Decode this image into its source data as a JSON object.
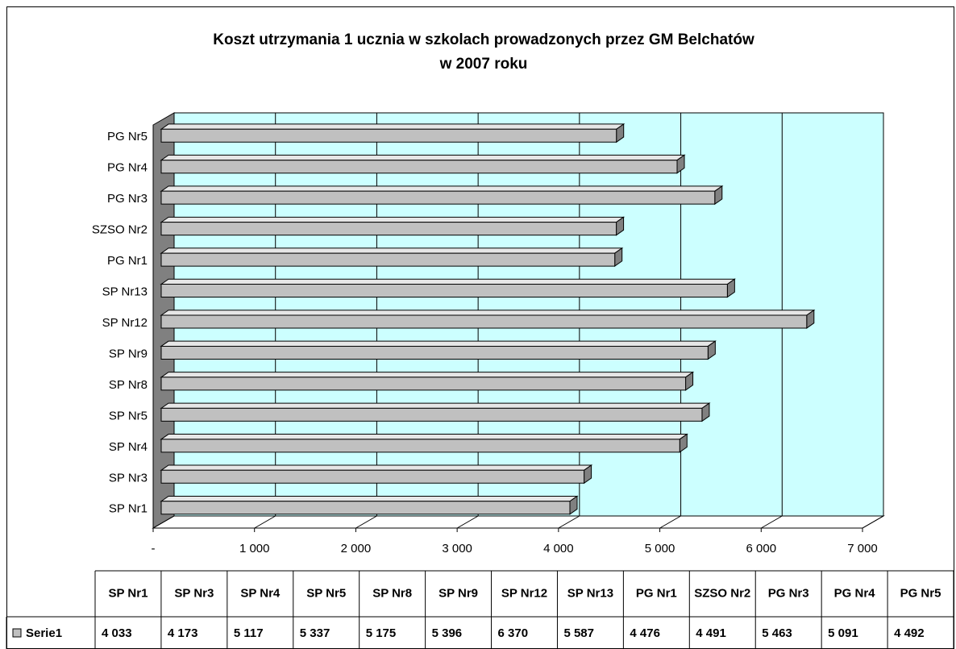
{
  "chart_data": {
    "type": "bar",
    "orientation": "horizontal",
    "title": [
      "Koszt utrzymania 1 ucznia w szkolach prowadzonych przez GM Belchatów",
      "w 2007 roku"
    ],
    "categories": [
      "SP Nr1",
      "SP Nr3",
      "SP Nr4",
      "SP Nr5",
      "SP Nr8",
      "SP Nr9",
      "SP Nr12",
      "SP Nr13",
      "PG Nr1",
      "SZSO Nr2",
      "PG Nr3",
      "PG Nr4",
      "PG Nr5"
    ],
    "series": [
      {
        "name": "Serie1",
        "color": "#c0c0c0",
        "values": [
          4033,
          4173,
          5117,
          5337,
          5175,
          5396,
          6370,
          5587,
          4476,
          4491,
          5463,
          5091,
          4492
        ],
        "value_labels": [
          "4 033",
          "4 173",
          "5 117",
          "5 337",
          "5 175",
          "5 396",
          "6 370",
          "5 587",
          "4 476",
          "4 491",
          "5 463",
          "5 091",
          "4 492"
        ]
      }
    ],
    "xlim": [
      0,
      7000
    ],
    "xticks": [
      {
        "value": 0,
        "label": "-"
      },
      {
        "value": 1000,
        "label": "1 000"
      },
      {
        "value": 2000,
        "label": "2 000"
      },
      {
        "value": 3000,
        "label": "3 000"
      },
      {
        "value": 4000,
        "label": "4 000"
      },
      {
        "value": 5000,
        "label": "5 000"
      },
      {
        "value": 6000,
        "label": "6 000"
      },
      {
        "value": 7000,
        "label": "7 000"
      }
    ],
    "grid": true,
    "wall_color": "#ccffff"
  }
}
